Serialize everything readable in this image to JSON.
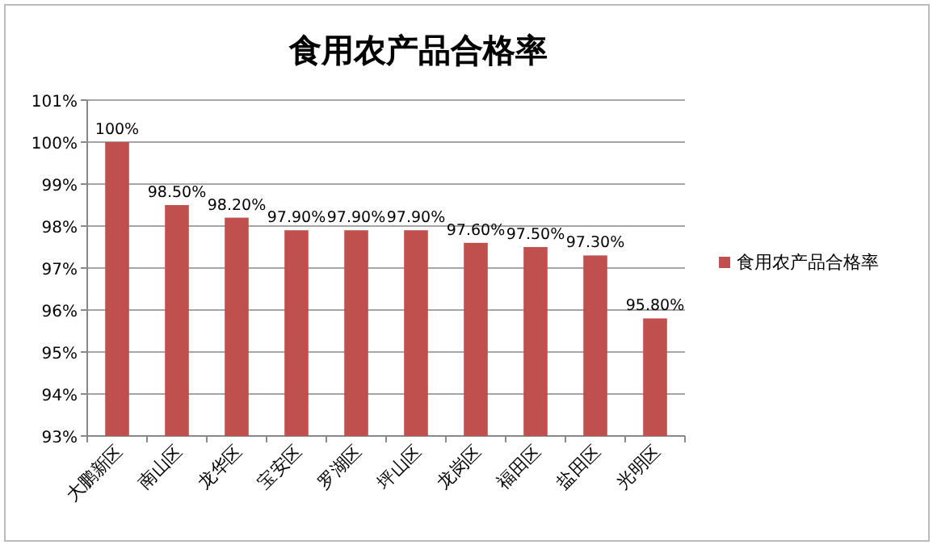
{
  "chart_data": {
    "type": "bar",
    "title": "食用农产品合格率",
    "categories": [
      "大鹏新区",
      "南山区",
      "龙华区",
      "宝安区",
      "罗湖区",
      "坪山区",
      "龙岗区",
      "福田区",
      "盐田区",
      "光明区"
    ],
    "series": [
      {
        "name": "食用农产品合格率",
        "color": "#c0504d",
        "values": [
          100,
          98.5,
          98.2,
          97.9,
          97.9,
          97.9,
          97.6,
          97.5,
          97.3,
          95.8
        ],
        "value_labels": [
          "100%",
          "98.50%",
          "98.20%",
          "97.90%",
          "97.90%",
          "97.90%",
          "97.60%",
          "97.50%",
          "97.30%",
          "95.80%"
        ]
      }
    ],
    "ylim": [
      93,
      101
    ],
    "yticks": [
      {
        "value": 93,
        "label": "93%"
      },
      {
        "value": 94,
        "label": "94%"
      },
      {
        "value": 95,
        "label": "95%"
      },
      {
        "value": 96,
        "label": "96%"
      },
      {
        "value": 97,
        "label": "97%"
      },
      {
        "value": 98,
        "label": "98%"
      },
      {
        "value": 99,
        "label": "99%"
      },
      {
        "value": 100,
        "label": "100%"
      },
      {
        "value": 101,
        "label": "101%"
      }
    ],
    "grid": "y",
    "legend": "right"
  }
}
